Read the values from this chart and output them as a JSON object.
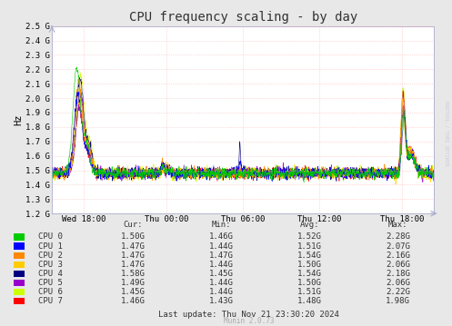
{
  "title": "CPU frequency scaling - by day",
  "ylabel": "Hz",
  "background_color": "#e8e8e8",
  "plot_bg_color": "#ffffff",
  "grid_color": "#ff9999",
  "ytick_labels": [
    "1.2 G",
    "1.3 G",
    "1.4 G",
    "1.5 G",
    "1.6 G",
    "1.7 G",
    "1.8 G",
    "1.9 G",
    "2.0 G",
    "2.1 G",
    "2.2 G",
    "2.3 G",
    "2.4 G",
    "2.5 G"
  ],
  "ytick_values": [
    1.2,
    1.3,
    1.4,
    1.5,
    1.6,
    1.7,
    1.8,
    1.9,
    2.0,
    2.1,
    2.2,
    2.3,
    2.4,
    2.5
  ],
  "xtick_labels": [
    "Wed 18:00",
    "Thu 00:00",
    "Thu 06:00",
    "Thu 12:00",
    "Thu 18:00"
  ],
  "xtick_positions": [
    0.083,
    0.3,
    0.5,
    0.7,
    0.917
  ],
  "ylim": [
    1.2,
    2.5
  ],
  "cpu_colors": [
    "#00cc00",
    "#0000ff",
    "#ff8800",
    "#ffcc00",
    "#000080",
    "#9900cc",
    "#ccff00",
    "#ff0000"
  ],
  "cpu_labels": [
    "CPU 0",
    "CPU 1",
    "CPU 2",
    "CPU 3",
    "CPU 4",
    "CPU 5",
    "CPU 6",
    "CPU 7"
  ],
  "cur_vals": [
    "1.50G",
    "1.47G",
    "1.47G",
    "1.47G",
    "1.58G",
    "1.49G",
    "1.45G",
    "1.46G"
  ],
  "min_vals": [
    "1.46G",
    "1.44G",
    "1.47G",
    "1.44G",
    "1.45G",
    "1.44G",
    "1.44G",
    "1.43G"
  ],
  "avg_vals": [
    "1.52G",
    "1.51G",
    "1.54G",
    "1.50G",
    "1.54G",
    "1.50G",
    "1.51G",
    "1.48G"
  ],
  "max_vals": [
    "2.28G",
    "2.07G",
    "2.16G",
    "2.06G",
    "2.18G",
    "2.06G",
    "2.22G",
    "1.98G"
  ],
  "footer_text": "Last update: Thu Nov 21 23:30:20 2024",
  "munin_text": "Munin 2.0.73",
  "rrdtool_text": "RRDTOOL / TOBI OETIKER",
  "title_fontsize": 10,
  "axis_fontsize": 6.5,
  "table_fontsize": 6.5
}
